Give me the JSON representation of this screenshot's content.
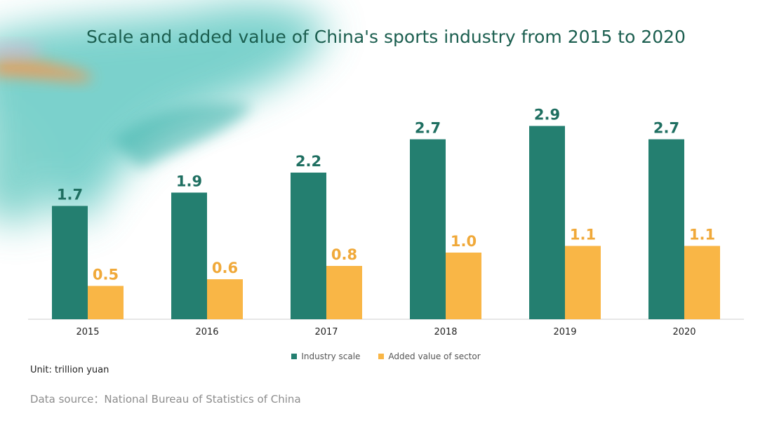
{
  "title": "Scale and added value of China's sports industry from 2015 to 2020",
  "unit_note": "Unit: trillion yuan",
  "source_note": "Data source：National Bureau of Statistics of China",
  "colors": {
    "industry_scale": "#247f70",
    "added_value": "#f9b646",
    "title": "#1b5e4f"
  },
  "chart_data": {
    "type": "bar",
    "title": "Scale and added value of China's sports industry from 2015 to 2020",
    "categories": [
      "2015",
      "2016",
      "2017",
      "2018",
      "2019",
      "2020"
    ],
    "series": [
      {
        "name": "Industry scale",
        "values": [
          1.7,
          1.9,
          2.2,
          2.7,
          2.9,
          2.7
        ],
        "labels": [
          "1.7",
          "1.9",
          "2.2",
          "2.7",
          "2.9",
          "2.7"
        ]
      },
      {
        "name": "Added value of sector",
        "values": [
          0.5,
          0.6,
          0.8,
          1.0,
          1.1,
          1.1
        ],
        "labels": [
          "0.5",
          "0.6",
          "0.8",
          "1.0",
          "1.1",
          "1.1"
        ]
      }
    ],
    "xlabel": "",
    "ylabel": "",
    "ylim": [
      0,
      3
    ],
    "grid": false,
    "legend_position": "bottom"
  }
}
